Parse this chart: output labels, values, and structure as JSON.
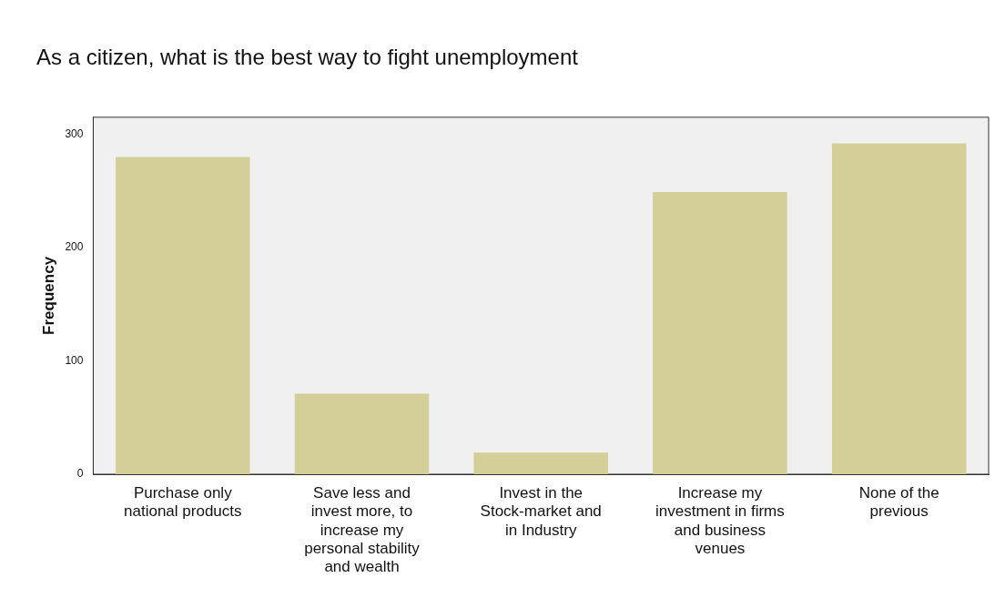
{
  "chart_data": {
    "type": "bar",
    "title": "As a citizen, what is the best way to fight unemployment",
    "ylabel": "Frequency",
    "categories": [
      "Purchase only national products",
      "Save less and invest more, to increase my personal stability and wealth",
      "Invest in the Stock-market and in Industry",
      "Increase my investment in firms and business venues",
      "None of the previous"
    ],
    "values": [
      280,
      71,
      19,
      249,
      292
    ],
    "color": "#d4cf98",
    "ylim": [
      0,
      315
    ],
    "yticks": [
      0,
      100,
      200,
      300
    ],
    "grid": false,
    "legend": false
  }
}
